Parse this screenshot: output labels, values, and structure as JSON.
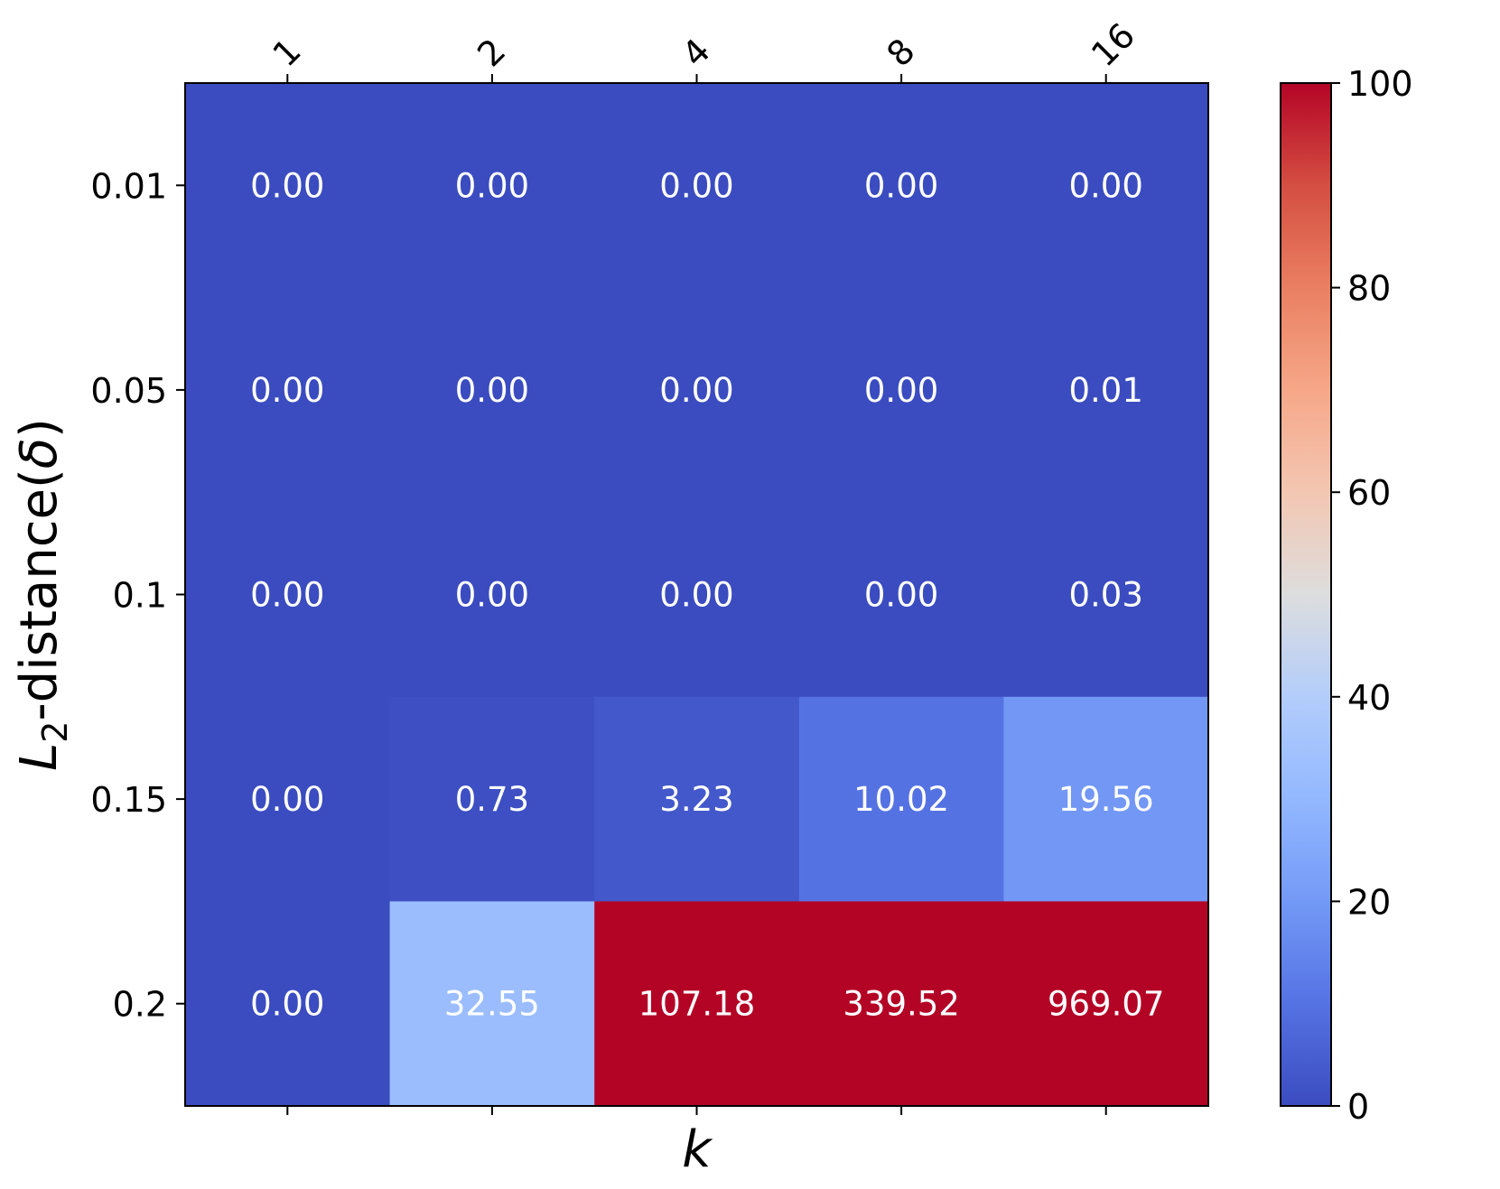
{
  "chart_data": {
    "type": "heatmap",
    "title": "",
    "xlabel": "k",
    "ylabel": {
      "prefix": "L",
      "subscript": "2",
      "suffix": "-distance(",
      "symbol": "δ",
      "close": ")"
    },
    "x_categories": [
      "1",
      "2",
      "4",
      "8",
      "16"
    ],
    "y_categories": [
      "0.01",
      "0.05",
      "0.1",
      "0.15",
      "0.2"
    ],
    "values": [
      [
        0.0,
        0.0,
        0.0,
        0.0,
        0.0
      ],
      [
        0.0,
        0.0,
        0.0,
        0.0,
        0.01
      ],
      [
        0.0,
        0.0,
        0.0,
        0.0,
        0.03
      ],
      [
        0.0,
        0.73,
        3.23,
        10.02,
        19.56
      ],
      [
        0.0,
        32.55,
        107.18,
        339.52,
        969.07
      ]
    ],
    "cell_labels": [
      [
        "0.00",
        "0.00",
        "0.00",
        "0.00",
        "0.00"
      ],
      [
        "0.00",
        "0.00",
        "0.00",
        "0.00",
        "0.01"
      ],
      [
        "0.00",
        "0.00",
        "0.00",
        "0.00",
        "0.03"
      ],
      [
        "0.00",
        "0.73",
        "3.23",
        "10.02",
        "19.56"
      ],
      [
        "0.00",
        "32.55",
        "107.18",
        "339.52",
        "969.07"
      ]
    ],
    "colormap": "coolwarm",
    "color_range": [
      0,
      100
    ],
    "colorbar_ticks": [
      "0",
      "20",
      "40",
      "60",
      "80",
      "100"
    ],
    "x_tick_rotation_deg": 45,
    "grid": false,
    "colors": {
      "low": "#3b4cc0",
      "high": "#b40426",
      "text": "#ffffff"
    }
  }
}
